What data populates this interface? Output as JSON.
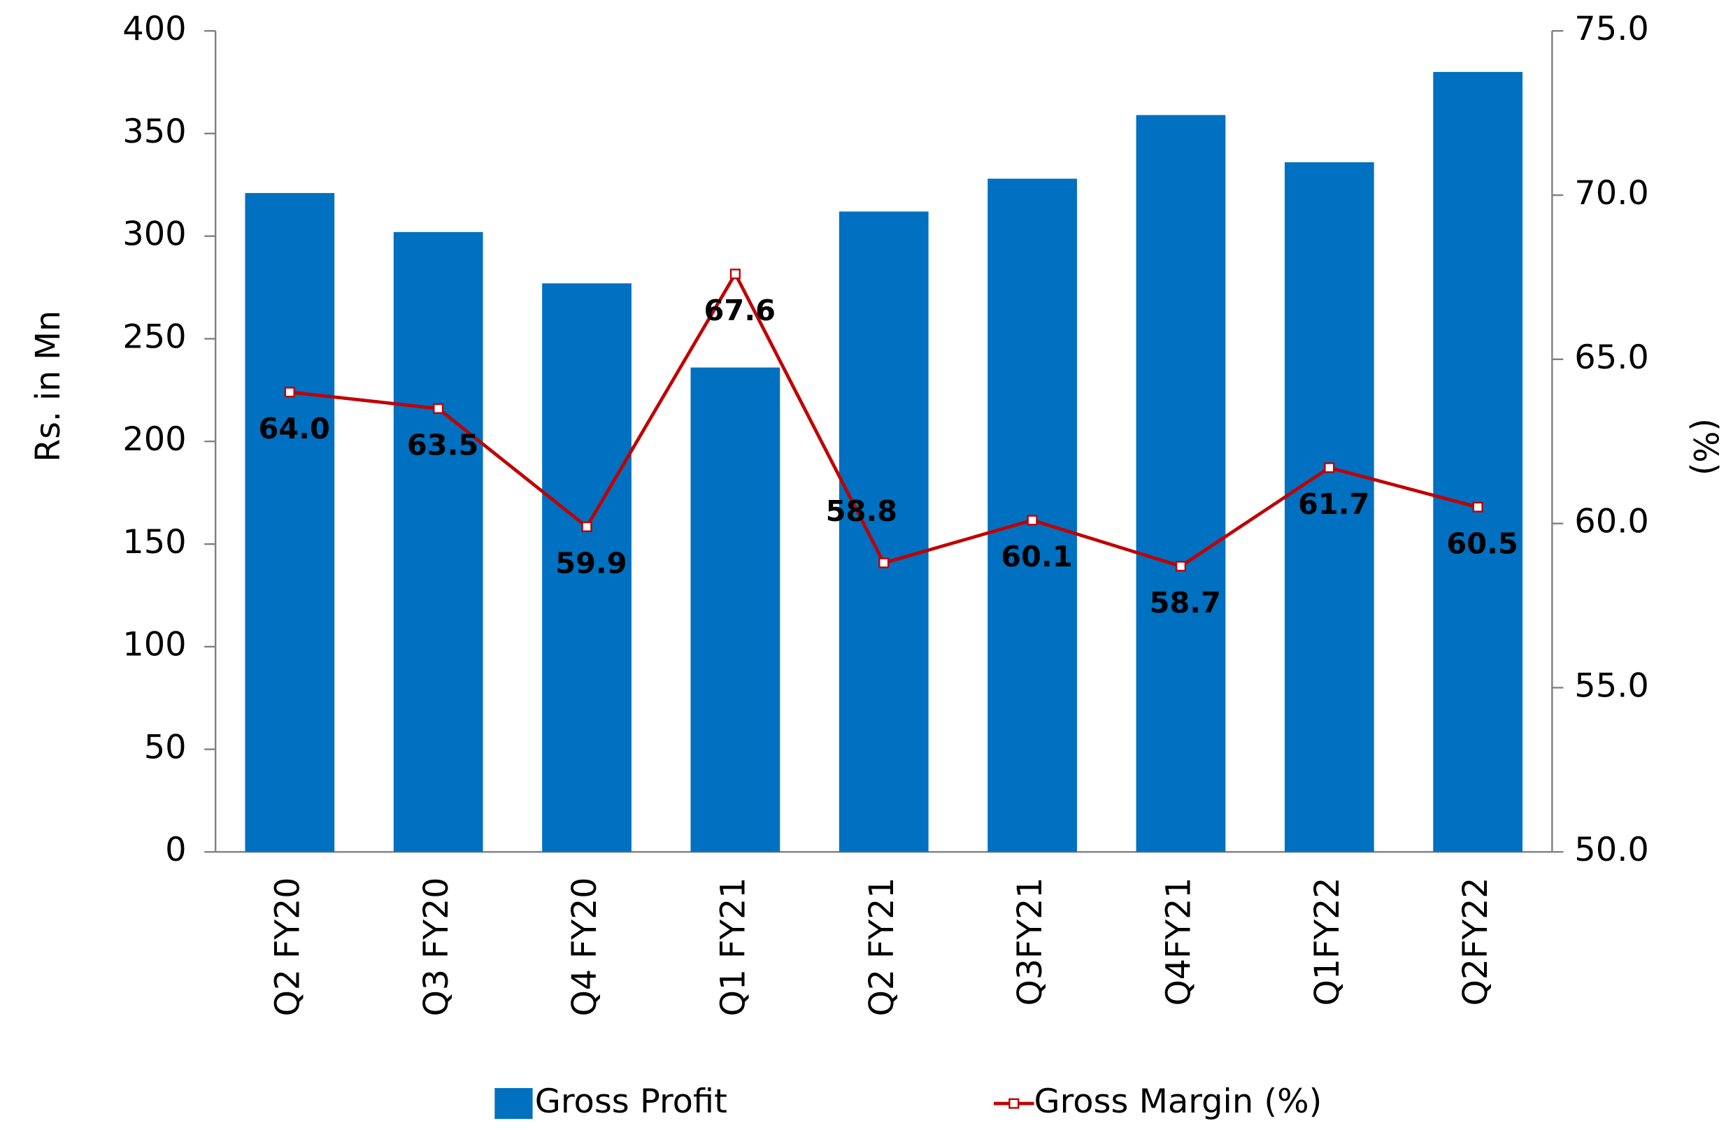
{
  "chart_data": {
    "type": "bar-line",
    "categories": [
      "Q2 FY20",
      "Q3 FY20",
      "Q4 FY20",
      "Q1 FY21",
      "Q2 FY21",
      "Q3FY21",
      "Q4FY21",
      "Q1FY22",
      "Q2FY22"
    ],
    "series": [
      {
        "name": "Gross Profit",
        "type": "bar",
        "color": "#0070c0",
        "values": [
          321,
          302,
          277,
          236,
          312,
          328,
          359,
          336,
          380
        ]
      },
      {
        "name": "Gross Margin (%)",
        "type": "line",
        "axis": "y2",
        "color": "#c00000",
        "values": [
          64.0,
          63.5,
          59.9,
          67.6,
          58.8,
          60.1,
          58.7,
          61.7,
          60.5
        ],
        "value_labels": [
          "64.0",
          "63.5",
          "59.9",
          "67.6",
          "58.8",
          "60.1",
          "58.7",
          "61.7",
          "60.5"
        ]
      }
    ],
    "ylabel": "Rs. in Mn",
    "y2label": "(%)",
    "ylim": [
      0,
      400
    ],
    "yticks": [
      0,
      50,
      100,
      150,
      200,
      250,
      300,
      350,
      400
    ],
    "y2lim": [
      50,
      75
    ],
    "y2ticks": [
      {
        "value": 50,
        "label": "50.0"
      },
      {
        "value": 55,
        "label": "55.0"
      },
      {
        "value": 60,
        "label": "60.0"
      },
      {
        "value": 65,
        "label": "65.0"
      },
      {
        "value": 70,
        "label": "70.0"
      },
      {
        "value": 75,
        "label": "75.0"
      }
    ],
    "legend": "bottom"
  }
}
